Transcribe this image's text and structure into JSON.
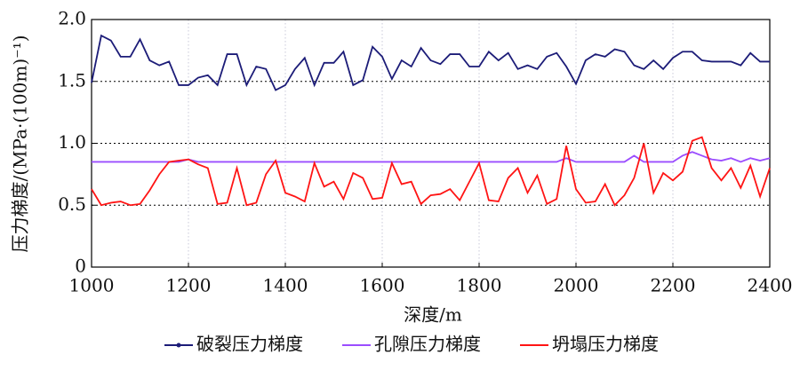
{
  "chart_data": {
    "type": "line",
    "xlabel": "深度/m",
    "ylabel": "压力梯度/(MPa·(100m)⁻¹)",
    "x": [
      1000,
      1020,
      1040,
      1060,
      1080,
      1100,
      1120,
      1140,
      1160,
      1180,
      1200,
      1220,
      1240,
      1260,
      1280,
      1300,
      1320,
      1340,
      1360,
      1380,
      1400,
      1420,
      1440,
      1460,
      1480,
      1500,
      1520,
      1540,
      1560,
      1580,
      1600,
      1620,
      1640,
      1660,
      1680,
      1700,
      1720,
      1740,
      1760,
      1780,
      1800,
      1820,
      1840,
      1860,
      1880,
      1900,
      1920,
      1940,
      1960,
      1980,
      2000,
      2020,
      2040,
      2060,
      2080,
      2100,
      2120,
      2140,
      2160,
      2180,
      2200,
      2220,
      2240,
      2260,
      2280,
      2300,
      2320,
      2340,
      2360,
      2380,
      2400
    ],
    "series": [
      {
        "name": "破裂压力梯度",
        "color": "#1c1c78",
        "values": [
          1.49,
          1.87,
          1.83,
          1.7,
          1.7,
          1.84,
          1.67,
          1.63,
          1.66,
          1.47,
          1.47,
          1.53,
          1.55,
          1.47,
          1.72,
          1.72,
          1.47,
          1.62,
          1.6,
          1.43,
          1.47,
          1.6,
          1.69,
          1.47,
          1.65,
          1.65,
          1.74,
          1.47,
          1.51,
          1.78,
          1.7,
          1.52,
          1.67,
          1.62,
          1.77,
          1.67,
          1.64,
          1.72,
          1.72,
          1.62,
          1.62,
          1.74,
          1.67,
          1.73,
          1.6,
          1.63,
          1.6,
          1.7,
          1.73,
          1.62,
          1.48,
          1.67,
          1.72,
          1.7,
          1.76,
          1.74,
          1.63,
          1.6,
          1.67,
          1.6,
          1.69,
          1.74,
          1.74,
          1.67,
          1.66,
          1.66,
          1.66,
          1.63,
          1.73,
          1.66,
          1.66
        ]
      },
      {
        "name": "孔隙压力梯度",
        "color": "#9b4dff",
        "values": [
          0.85,
          0.85,
          0.85,
          0.85,
          0.85,
          0.85,
          0.85,
          0.85,
          0.85,
          0.85,
          0.87,
          0.85,
          0.85,
          0.85,
          0.85,
          0.85,
          0.85,
          0.85,
          0.85,
          0.85,
          0.85,
          0.85,
          0.85,
          0.85,
          0.85,
          0.85,
          0.85,
          0.85,
          0.85,
          0.85,
          0.85,
          0.85,
          0.85,
          0.85,
          0.85,
          0.85,
          0.85,
          0.85,
          0.85,
          0.85,
          0.85,
          0.85,
          0.85,
          0.85,
          0.85,
          0.85,
          0.85,
          0.85,
          0.85,
          0.88,
          0.85,
          0.85,
          0.85,
          0.85,
          0.85,
          0.85,
          0.9,
          0.85,
          0.85,
          0.85,
          0.85,
          0.9,
          0.93,
          0.9,
          0.87,
          0.86,
          0.88,
          0.85,
          0.88,
          0.86,
          0.88
        ]
      },
      {
        "name": "坍塌压力梯度",
        "color": "#ff1414",
        "values": [
          0.63,
          0.5,
          0.52,
          0.53,
          0.5,
          0.51,
          0.62,
          0.75,
          0.85,
          0.86,
          0.87,
          0.83,
          0.8,
          0.51,
          0.52,
          0.8,
          0.5,
          0.52,
          0.75,
          0.86,
          0.6,
          0.57,
          0.53,
          0.84,
          0.65,
          0.69,
          0.55,
          0.76,
          0.72,
          0.55,
          0.56,
          0.84,
          0.67,
          0.69,
          0.51,
          0.58,
          0.59,
          0.63,
          0.54,
          0.69,
          0.84,
          0.54,
          0.53,
          0.72,
          0.8,
          0.6,
          0.74,
          0.51,
          0.55,
          0.98,
          0.63,
          0.52,
          0.53,
          0.67,
          0.5,
          0.58,
          0.72,
          1.0,
          0.6,
          0.76,
          0.7,
          0.77,
          1.02,
          1.05,
          0.8,
          0.7,
          0.8,
          0.64,
          0.82,
          0.57,
          0.8
        ]
      }
    ],
    "xlim": [
      1000,
      2400
    ],
    "xticks": [
      1000,
      1200,
      1400,
      1600,
      1800,
      2000,
      2200,
      2400
    ],
    "ylim": [
      0,
      2
    ],
    "yticks": [
      0,
      0.5,
      {
        "value": 1,
        "label": "1.0"
      },
      1.5,
      {
        "value": 2,
        "label": "2.0"
      }
    ],
    "grid": true,
    "legend": "bottom"
  }
}
